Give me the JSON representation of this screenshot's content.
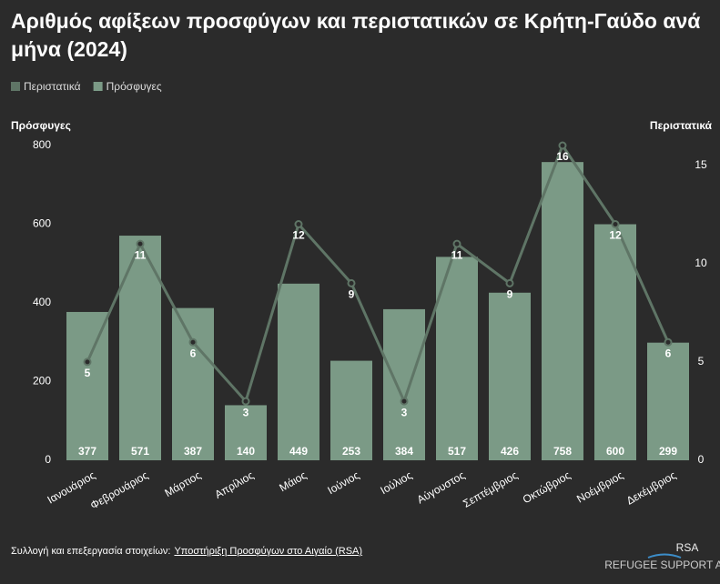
{
  "chart_data": {
    "type": "bar",
    "title": "Αριθμός αφίξεων προσφύγων και περιστατικών σε Κρήτη-Γαύδο ανά μήνα (2024)",
    "y_label": "Πρόσφυγες",
    "y2_label": "Περιστατικά",
    "categories": [
      "Ιανουάριος",
      "Φεβρουάριος",
      "Μάρτιος",
      "Απρίλιος",
      "Μάιος",
      "Ιούνιος",
      "Ιούλιος",
      "Αύγουστος",
      "Σεπτέμβριος",
      "Οκτώβριος",
      "Νοέμβριος",
      "Δεκέμβριος"
    ],
    "series": [
      {
        "name": "Περιστατικά",
        "type": "line",
        "axis": "y2",
        "color": "#5f7566",
        "values": [
          5,
          11,
          6,
          3,
          12,
          9,
          3,
          11,
          9,
          16,
          12,
          6
        ]
      },
      {
        "name": "Πρόσφυγες",
        "type": "bar",
        "axis": "y",
        "color": "#7b9a86",
        "values": [
          377,
          571,
          387,
          140,
          449,
          253,
          384,
          517,
          426,
          758,
          600,
          299
        ]
      }
    ],
    "ylim": [
      0,
      800
    ],
    "yticks": [
      0,
      200,
      400,
      600,
      800
    ],
    "y2lim": [
      0,
      16
    ],
    "y2ticks": [
      0,
      5,
      10,
      15
    ],
    "legend": "top-left"
  },
  "footer": {
    "prefix": "Συλλογή και επεξεργασία στοιχείων:",
    "link": "Υποστήριξη Προσφύγων στο Αιγαίο (RSA)"
  },
  "logo": {
    "name": "RSA",
    "tagline": "REFUGEE SUPPORT AEGEAN"
  }
}
